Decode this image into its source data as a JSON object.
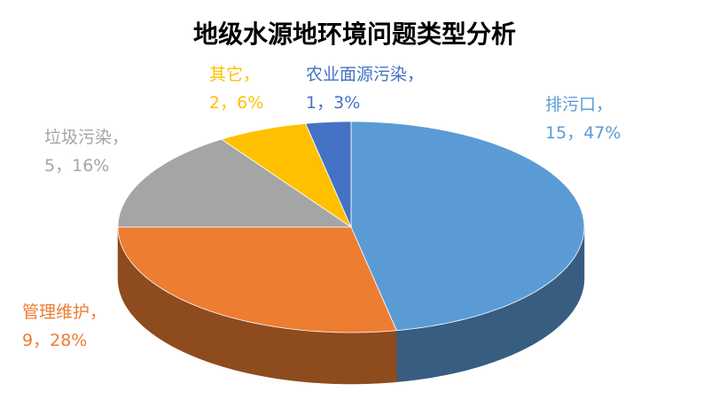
{
  "chart_data": {
    "type": "pie3d",
    "title": "地级水源地环境问题类型分析",
    "categories": [
      "排污口",
      "管理维护",
      "垃圾污染",
      "其它",
      "农业面源污染"
    ],
    "values": [
      15,
      9,
      5,
      2,
      1
    ],
    "percent_labels": [
      "47%",
      "28%",
      "16%",
      "6%",
      "3%"
    ],
    "label_separator": "，",
    "colors": [
      "#5b9bd5",
      "#ed7d31",
      "#a5a5a5",
      "#ffc000",
      "#4472c4"
    ]
  }
}
